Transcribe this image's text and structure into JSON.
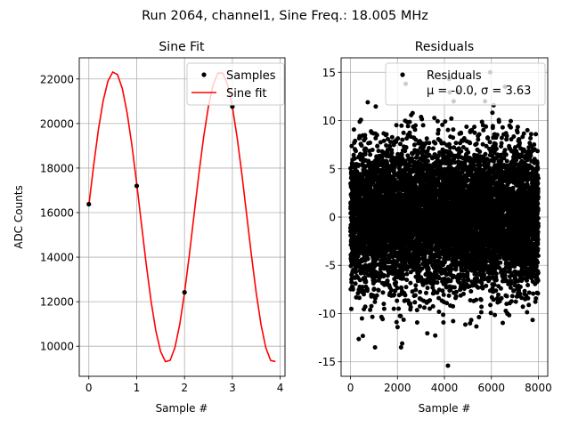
{
  "figure": {
    "suptitle": "Run 2064, channel1, Sine Freq.: 18.005 MHz"
  },
  "chart_data": [
    {
      "type": "line",
      "title": "Sine Fit",
      "xlabel": "Sample #",
      "ylabel": "ADC Counts",
      "xlim": [
        -0.2,
        4.1
      ],
      "ylim": [
        8650,
        22950
      ],
      "xticks": [
        0,
        1,
        2,
        3,
        4
      ],
      "yticks": [
        10000,
        12000,
        14000,
        16000,
        18000,
        20000,
        22000
      ],
      "grid": true,
      "legend": {
        "placement": "top-right",
        "entries": [
          "Samples",
          "Sine fit"
        ]
      },
      "series": [
        {
          "name": "Samples",
          "kind": "scatter",
          "color": "#000000",
          "x": [
            0,
            1,
            2,
            3
          ],
          "y": [
            16380,
            17200,
            12420,
            20760
          ]
        },
        {
          "name": "Sine fit",
          "kind": "line",
          "color": "#ff0000",
          "model": {
            "offset": 15800,
            "amplitude": 6530,
            "cycles_per_sample": 0.45011,
            "phase": 0.0792
          },
          "x_range": [
            0,
            3.9
          ],
          "points": 40
        }
      ]
    },
    {
      "type": "scatter",
      "title": "Residuals",
      "xlabel": "Sample #",
      "ylabel": "",
      "xlim": [
        -400,
        8400
      ],
      "ylim": [
        -16.5,
        16.5
      ],
      "xticks": [
        0,
        2000,
        4000,
        6000,
        8000
      ],
      "yticks": [
        -15,
        -10,
        -5,
        0,
        5,
        10,
        15
      ],
      "grid": true,
      "legend": {
        "placement": "top-right",
        "entries": [
          "Residuals",
          "μ = -0.0, σ = 3.63"
        ]
      },
      "series": [
        {
          "name": "Residuals",
          "color": "#000000",
          "count": 8000,
          "mean": -0.0,
          "std": 3.63,
          "x_range": [
            0,
            8000
          ],
          "notable_points": [
            {
              "x": 4150,
              "y": -15.4
            },
            {
              "x": 5950,
              "y": 15.0
            },
            {
              "x": 2200,
              "y": -13.1
            },
            {
              "x": 4200,
              "y": 14.3
            },
            {
              "x": 2350,
              "y": 13.8
            }
          ]
        }
      ]
    }
  ]
}
